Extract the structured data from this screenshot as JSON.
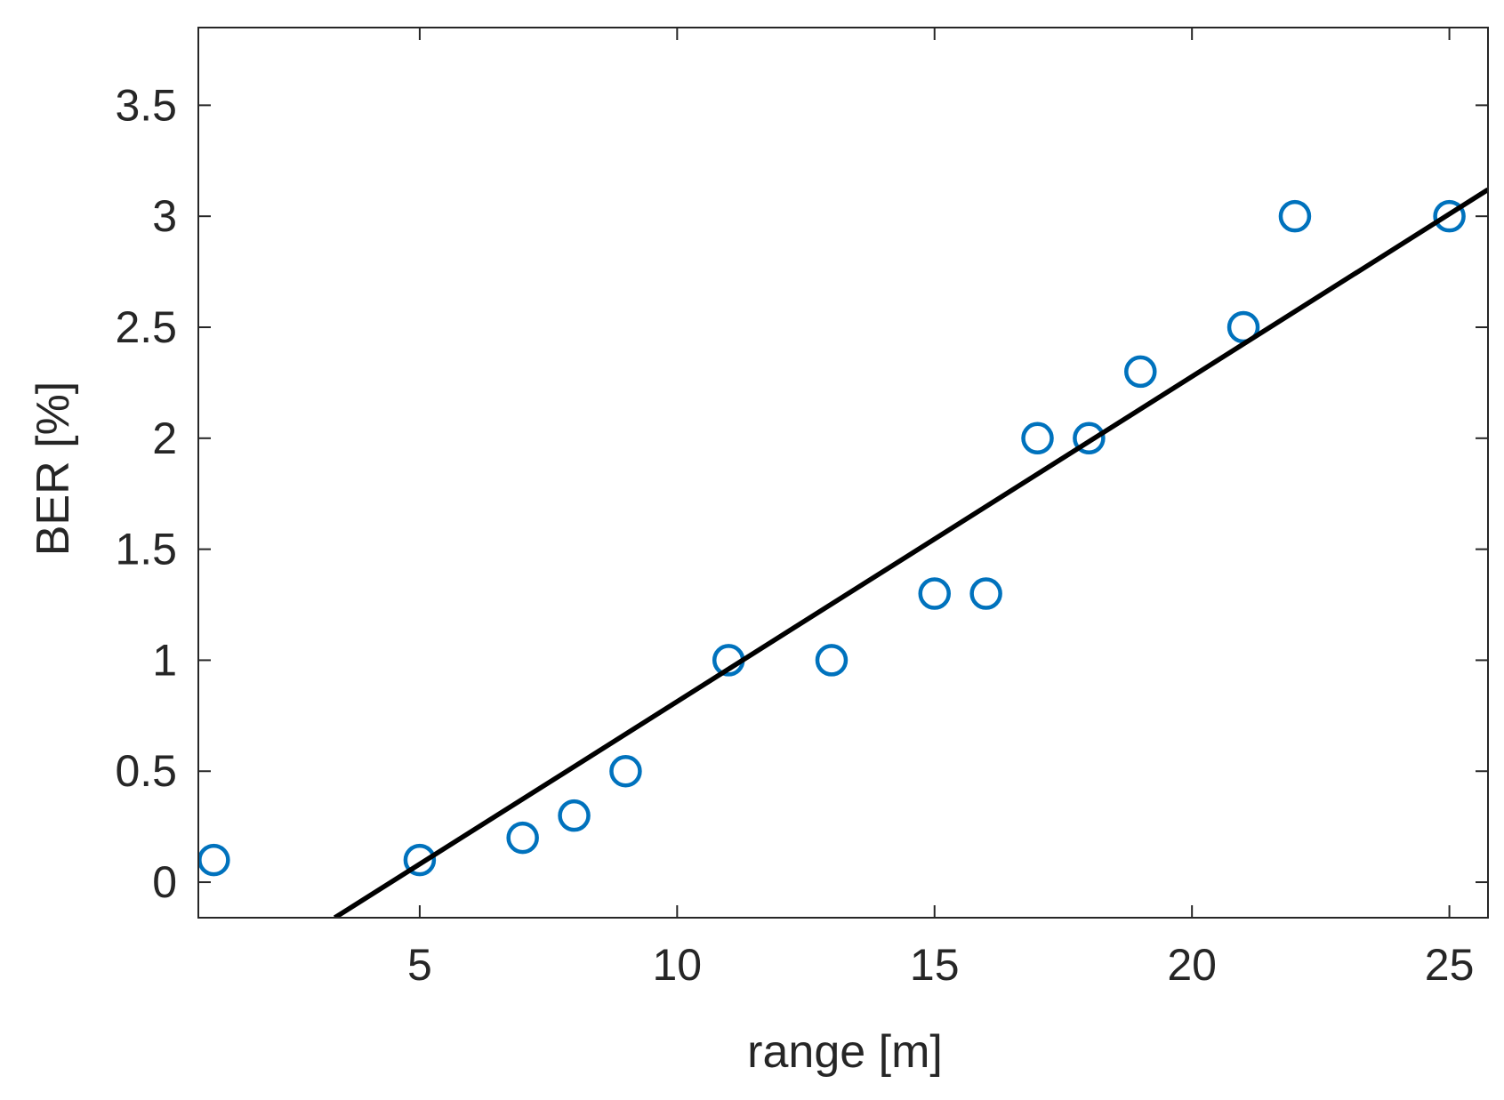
{
  "chart_data": {
    "type": "scatter",
    "xlabel": "range [m]",
    "ylabel": "BER [%]",
    "xlim": [
      0.7,
      25.75
    ],
    "ylim": [
      -0.16,
      3.85
    ],
    "xticks": [
      5,
      10,
      15,
      20,
      25
    ],
    "yticks": [
      0,
      0.5,
      1,
      1.5,
      2,
      2.5,
      3,
      3.5
    ],
    "xtick_labels": [
      "5",
      "10",
      "15",
      "20",
      "25"
    ],
    "ytick_labels": [
      "0",
      "0.5",
      "1",
      "1.5",
      "2",
      "2.5",
      "3",
      "3.5"
    ],
    "grid": false,
    "series": [
      {
        "type": "scatter",
        "marker": "circle-open",
        "color": "#0072BD",
        "x": [
          1,
          5,
          7,
          8,
          9,
          11,
          13,
          15,
          16,
          17,
          18,
          19,
          21,
          22,
          25
        ],
        "y": [
          0.1,
          0.1,
          0.2,
          0.3,
          0.5,
          1.0,
          1.0,
          1.3,
          1.3,
          2.0,
          2.0,
          2.3,
          2.5,
          3.0,
          3.0
        ]
      },
      {
        "type": "line",
        "color": "#000000",
        "x": [
          3.35,
          25.75
        ],
        "y": [
          -0.16,
          3.12
        ]
      }
    ]
  }
}
